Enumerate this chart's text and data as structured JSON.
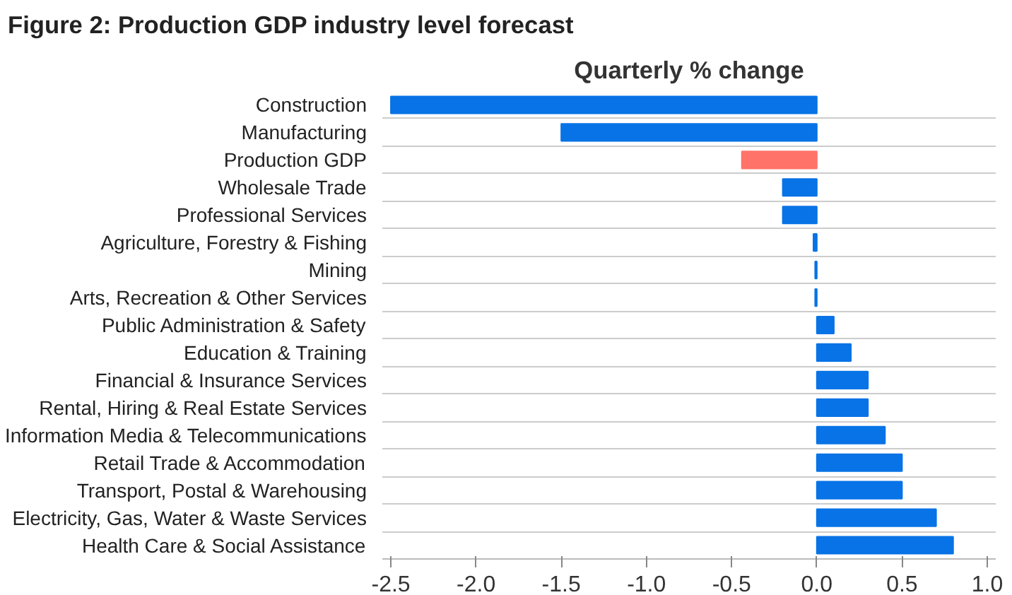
{
  "chart_data": {
    "type": "bar",
    "orientation": "horizontal",
    "title": "Figure 2: Production GDP industry level forecast",
    "subtitle": "Quarterly % change",
    "categories": [
      "Construction",
      "Manufacturing",
      "Production GDP",
      "Wholesale Trade",
      "Professional Services",
      "Agriculture, Forestry & Fishing",
      "Mining",
      "Arts, Recreation & Other Services",
      "Public Administration & Safety",
      "Education & Training",
      "Financial & Insurance Services",
      "Rental, Hiring & Real Estate Services",
      "Information Media & Telecommunications",
      "Retail Trade & Accommodation",
      "Transport, Postal & Warehousing",
      "Electricity, Gas, Water & Waste Services",
      "Health Care & Social Assistance"
    ],
    "values": [
      -2.5,
      -1.5,
      -0.44,
      -0.2,
      -0.2,
      -0.02,
      -0.01,
      -0.01,
      0.1,
      0.2,
      0.3,
      0.3,
      0.4,
      0.5,
      0.5,
      0.7,
      0.8
    ],
    "colors": [
      "#0873e6",
      "#0873e6",
      "#ff7369",
      "#0873e6",
      "#0873e6",
      "#0873e6",
      "#0873e6",
      "#0873e6",
      "#0873e6",
      "#0873e6",
      "#0873e6",
      "#0873e6",
      "#0873e6",
      "#0873e6",
      "#0873e6",
      "#0873e6",
      "#0873e6"
    ],
    "xlim": [
      -2.55,
      1.05
    ],
    "xticks": [
      -2.5,
      {
        "value": -2,
        "label": "-2.0"
      },
      -1.5,
      {
        "value": -1,
        "label": "-1.0"
      },
      -0.5,
      {
        "value": 0,
        "label": "0.0"
      },
      0.5,
      {
        "value": 1,
        "label": "1.0"
      }
    ],
    "grid": "y"
  }
}
